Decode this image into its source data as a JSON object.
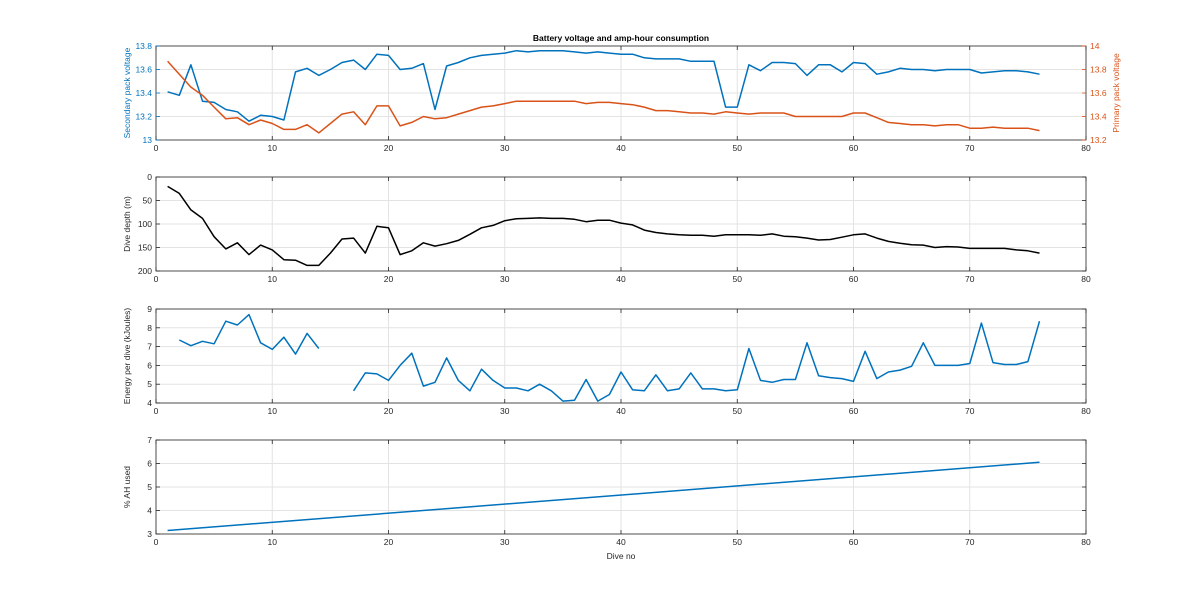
{
  "figure": {
    "title": "Battery voltage and amp-hour consumption",
    "xlabel": "Dive no",
    "colors": {
      "blue": "#0072BD",
      "orange": "#D95319",
      "black": "#000000",
      "grid": "#e3e3e3",
      "axis": "#262626"
    }
  },
  "chart_data": [
    {
      "type": "line",
      "title": "Battery voltage and amp-hour consumption",
      "xlabel": "",
      "xlim": [
        0,
        80
      ],
      "xticks": [
        0,
        10,
        20,
        30,
        40,
        50,
        60,
        70,
        80
      ],
      "grid": true,
      "y_left": {
        "label": "Secondary pack voltage",
        "ylim": [
          13,
          13.8
        ],
        "ticks": [
          13,
          13.2,
          13.4,
          13.6,
          13.8
        ],
        "tick_labels": [
          "13",
          "13.2",
          "13.4",
          "13.6",
          "13.8"
        ],
        "color": "#0072BD"
      },
      "y_right": {
        "label": "Primary pack voltage",
        "ylim": [
          13.2,
          14
        ],
        "ticks": [
          13.2,
          13.4,
          13.6,
          13.8,
          14
        ],
        "tick_labels": [
          "13.2",
          "13.4",
          "13.6",
          "13.8",
          "14"
        ],
        "color": "#D95319"
      },
      "series": [
        {
          "axis": "left",
          "color": "#0072BD",
          "x": [
            1,
            2,
            3,
            4,
            5,
            6,
            7,
            8,
            9,
            10,
            11,
            12,
            13,
            14,
            15,
            16,
            17,
            18,
            19,
            20,
            21,
            22,
            23,
            24,
            25,
            26,
            27,
            28,
            29,
            30,
            31,
            32,
            33,
            34,
            35,
            36,
            37,
            38,
            39,
            40,
            41,
            42,
            43,
            44,
            45,
            46,
            47,
            48,
            49,
            50,
            51,
            52,
            53,
            54,
            55,
            56,
            57,
            58,
            59,
            60,
            61,
            62,
            63,
            64,
            65,
            66,
            67,
            68,
            69,
            70,
            71,
            72,
            73,
            74,
            75,
            76
          ],
          "values": [
            13.41,
            13.38,
            13.64,
            13.33,
            13.32,
            13.26,
            13.24,
            13.16,
            13.21,
            13.2,
            13.17,
            13.58,
            13.61,
            13.55,
            13.6,
            13.66,
            13.68,
            13.6,
            13.73,
            13.72,
            13.6,
            13.61,
            13.65,
            13.26,
            13.63,
            13.66,
            13.7,
            13.72,
            13.73,
            13.74,
            13.76,
            13.75,
            13.76,
            13.76,
            13.76,
            13.75,
            13.74,
            13.75,
            13.74,
            13.73,
            13.73,
            13.7,
            13.69,
            13.69,
            13.69,
            13.67,
            13.67,
            13.67,
            13.28,
            13.28,
            13.64,
            13.59,
            13.66,
            13.66,
            13.65,
            13.55,
            13.64,
            13.64,
            13.58,
            13.66,
            13.65,
            13.56,
            13.58,
            13.61,
            13.6,
            13.6,
            13.59,
            13.6,
            13.6,
            13.6,
            13.57,
            13.58,
            13.59,
            13.59,
            13.58,
            13.56
          ]
        },
        {
          "axis": "right",
          "color": "#D95319",
          "x": [
            1,
            2,
            3,
            4,
            5,
            6,
            7,
            8,
            9,
            10,
            11,
            12,
            13,
            14,
            15,
            16,
            17,
            18,
            19,
            20,
            21,
            22,
            23,
            24,
            25,
            26,
            27,
            28,
            29,
            30,
            31,
            32,
            33,
            34,
            35,
            36,
            37,
            38,
            39,
            40,
            41,
            42,
            43,
            44,
            45,
            46,
            47,
            48,
            49,
            50,
            51,
            52,
            53,
            54,
            55,
            56,
            57,
            58,
            59,
            60,
            61,
            62,
            63,
            64,
            65,
            66,
            67,
            68,
            69,
            70,
            71,
            72,
            73,
            74,
            75,
            76
          ],
          "values": [
            13.87,
            13.76,
            13.65,
            13.58,
            13.48,
            13.38,
            13.39,
            13.33,
            13.37,
            13.34,
            13.29,
            13.29,
            13.33,
            13.26,
            13.34,
            13.42,
            13.44,
            13.33,
            13.49,
            13.49,
            13.32,
            13.35,
            13.4,
            13.38,
            13.39,
            13.42,
            13.45,
            13.48,
            13.49,
            13.51,
            13.53,
            13.53,
            13.53,
            13.53,
            13.53,
            13.53,
            13.51,
            13.52,
            13.52,
            13.51,
            13.5,
            13.48,
            13.45,
            13.45,
            13.44,
            13.43,
            13.43,
            13.42,
            13.44,
            13.43,
            13.42,
            13.43,
            13.43,
            13.43,
            13.4,
            13.4,
            13.4,
            13.4,
            13.4,
            13.43,
            13.43,
            13.39,
            13.35,
            13.34,
            13.33,
            13.33,
            13.32,
            13.33,
            13.33,
            13.3,
            13.3,
            13.31,
            13.3,
            13.3,
            13.3,
            13.28
          ]
        }
      ]
    },
    {
      "type": "line",
      "xlabel": "",
      "ylabel": "Dive depth (m)",
      "xlim": [
        0,
        80
      ],
      "ylim": [
        0,
        200
      ],
      "y_reversed": true,
      "xticks": [
        0,
        10,
        20,
        30,
        40,
        50,
        60,
        70,
        80
      ],
      "yticks": [
        0,
        50,
        100,
        150,
        200
      ],
      "grid": true,
      "series": [
        {
          "color": "#000000",
          "x": [
            1,
            2,
            3,
            4,
            5,
            6,
            7,
            8,
            9,
            10,
            11,
            12,
            13,
            14,
            15,
            16,
            17,
            18,
            19,
            20,
            21,
            22,
            23,
            24,
            25,
            26,
            27,
            28,
            29,
            30,
            31,
            32,
            33,
            34,
            35,
            36,
            37,
            38,
            39,
            40,
            41,
            42,
            43,
            44,
            45,
            46,
            47,
            48,
            49,
            50,
            51,
            52,
            53,
            54,
            55,
            56,
            57,
            58,
            59,
            60,
            61,
            62,
            63,
            64,
            65,
            66,
            67,
            68,
            69,
            70,
            71,
            72,
            73,
            74,
            75,
            76
          ],
          "values": [
            20,
            35,
            70,
            88,
            127,
            153,
            140,
            165,
            145,
            155,
            176,
            177,
            188,
            188,
            162,
            132,
            130,
            162,
            105,
            108,
            165,
            157,
            140,
            147,
            142,
            135,
            122,
            108,
            103,
            93,
            89,
            88,
            87,
            88,
            88,
            90,
            95,
            92,
            92,
            98,
            102,
            113,
            118,
            121,
            123,
            124,
            124,
            126,
            123,
            123,
            123,
            124,
            121,
            126,
            127,
            130,
            134,
            133,
            128,
            123,
            121,
            130,
            137,
            141,
            144,
            145,
            150,
            148,
            149,
            152,
            152,
            152,
            152,
            155,
            157,
            162
          ]
        }
      ]
    },
    {
      "type": "line",
      "xlabel": "",
      "ylabel": "Energy per dive (kJoules)",
      "xlim": [
        0,
        80
      ],
      "ylim": [
        4,
        9
      ],
      "xticks": [
        0,
        10,
        20,
        30,
        40,
        50,
        60,
        70,
        80
      ],
      "yticks": [
        4,
        5,
        6,
        7,
        8,
        9
      ],
      "grid": true,
      "series": [
        {
          "color": "#0072BD",
          "segments": [
            {
              "x": [
                2,
                3,
                4,
                5,
                6,
                7,
                8,
                9,
                10,
                11,
                12,
                13,
                14
              ],
              "values": [
                7.35,
                7.05,
                7.28,
                7.15,
                8.35,
                8.15,
                8.7,
                7.2,
                6.85,
                7.5,
                6.6,
                7.7,
                6.9
              ]
            },
            {
              "x": [
                17,
                18,
                19,
                20,
                21,
                22,
                23,
                24,
                25,
                26,
                27,
                28,
                29,
                30,
                31,
                32,
                33,
                34,
                35,
                36,
                37,
                38,
                39,
                40,
                41,
                42,
                43,
                44,
                45,
                46,
                47,
                48,
                49,
                50,
                51,
                52,
                53,
                54,
                55,
                56,
                57,
                58,
                59,
                60,
                61,
                62,
                63,
                64,
                65,
                66,
                67,
                68,
                69,
                70,
                71,
                72,
                73,
                74,
                75,
                76
              ],
              "values": [
                4.65,
                5.6,
                5.55,
                5.2,
                6.0,
                6.65,
                4.9,
                5.1,
                6.4,
                5.2,
                4.65,
                5.8,
                5.2,
                4.8,
                4.8,
                4.65,
                5.0,
                4.65,
                4.1,
                4.15,
                5.25,
                4.1,
                4.45,
                5.65,
                4.7,
                4.65,
                5.5,
                4.65,
                4.75,
                5.6,
                4.75,
                4.75,
                4.65,
                4.7,
                6.9,
                5.2,
                5.1,
                5.25,
                5.25,
                7.2,
                5.45,
                5.35,
                5.3,
                5.15,
                6.75,
                5.3,
                5.65,
                5.75,
                5.95,
                7.2,
                6.0,
                6.0,
                6.0,
                6.1,
                8.25,
                6.15,
                6.05,
                6.05,
                6.2,
                8.35
              ]
            }
          ]
        }
      ]
    },
    {
      "type": "line",
      "xlabel": "Dive no",
      "ylabel": "% AH used",
      "xlim": [
        0,
        80
      ],
      "ylim": [
        3,
        7
      ],
      "xticks": [
        0,
        10,
        20,
        30,
        40,
        50,
        60,
        70,
        80
      ],
      "yticks": [
        3,
        4,
        5,
        6,
        7
      ],
      "grid": true,
      "series": [
        {
          "color": "#0072BD",
          "x": [
            1,
            76
          ],
          "values": [
            3.15,
            6.05
          ]
        }
      ]
    }
  ]
}
